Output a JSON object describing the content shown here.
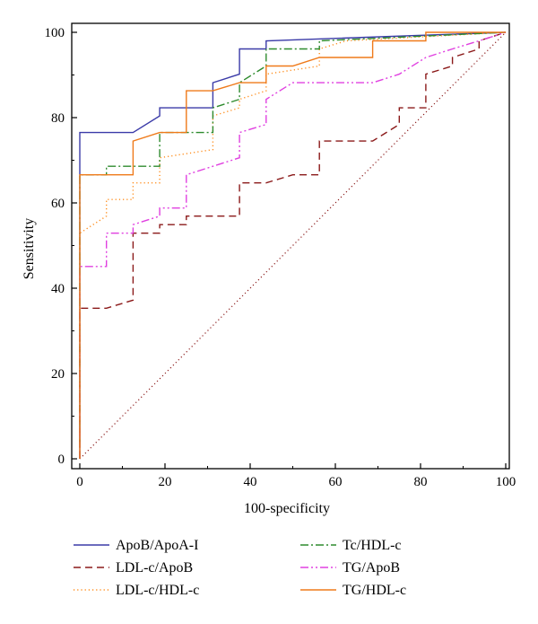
{
  "chart_data": {
    "type": "line",
    "title": "",
    "xlabel": "100-specificity",
    "ylabel": "Sensitivity",
    "xlim": [
      0,
      100
    ],
    "ylim": [
      0,
      100
    ],
    "xticks": [
      "0",
      "20",
      "40",
      "60",
      "80",
      "100"
    ],
    "yticks": [
      "0",
      "20",
      "40",
      "60",
      "80",
      "100"
    ],
    "grid": false,
    "legend_position": "bottom",
    "reference_line": {
      "x": [
        0,
        100
      ],
      "y": [
        0,
        100
      ],
      "color": "#8b1a1a",
      "style": "dotted"
    },
    "series": [
      {
        "name": "ApoB/ApoA-I",
        "color": "#3b3ba8",
        "style": "solid",
        "x": [
          0,
          0,
          12.5,
          18.75,
          18.75,
          25,
          31.25,
          31.25,
          37.5,
          37.5,
          43.75,
          43.75,
          100
        ],
        "y": [
          0,
          76.5,
          76.5,
          80.4,
          82.3,
          82.3,
          82.3,
          88.2,
          90.2,
          96.1,
          96.1,
          98,
          100
        ]
      },
      {
        "name": "LDL-c/ApoB",
        "color": "#8b1a1a",
        "style": "dashed",
        "x": [
          0,
          0,
          6.25,
          12.5,
          12.5,
          18.75,
          18.75,
          25,
          25,
          37.5,
          37.5,
          43.75,
          50,
          50,
          56.25,
          56.25,
          68.75,
          75,
          75,
          81.25,
          81.25,
          87.5,
          87.5,
          93.75,
          93.75,
          100
        ],
        "y": [
          0,
          35.3,
          35.3,
          37.2,
          52.9,
          52.9,
          54.9,
          54.9,
          56.9,
          56.9,
          64.7,
          64.7,
          66.6,
          66.6,
          66.6,
          74.5,
          74.5,
          78.4,
          82.3,
          82.3,
          90.2,
          92.1,
          94.1,
          96.1,
          98,
          100
        ]
      },
      {
        "name": "LDL-c/HDL-c",
        "color": "#ff8c1a",
        "style": "dotted",
        "x": [
          0,
          0,
          6.25,
          6.25,
          12.5,
          12.5,
          18.75,
          18.75,
          31.25,
          31.25,
          37.5,
          37.5,
          43.75,
          43.75,
          56.25,
          56.25,
          62.5,
          100
        ],
        "y": [
          0,
          52.9,
          56.9,
          60.8,
          60.8,
          64.7,
          64.7,
          70.6,
          72.5,
          80.4,
          82.3,
          84.3,
          86.3,
          90.2,
          92.1,
          96.1,
          98,
          100
        ]
      },
      {
        "name": "Tc/HDL-c",
        "color": "#2e8b2e",
        "style": "dashdot",
        "x": [
          0,
          0,
          6.25,
          6.25,
          18.75,
          18.75,
          31.25,
          31.25,
          37.5,
          37.5,
          43.75,
          43.75,
          56.25,
          56.25,
          100
        ],
        "y": [
          0,
          66.6,
          66.6,
          68.6,
          68.6,
          76.5,
          76.5,
          82.3,
          84.3,
          88.2,
          92.1,
          96.1,
          96.1,
          98,
          100
        ]
      },
      {
        "name": "TG/ApoB",
        "color": "#e040e0",
        "style": "dashdotdot",
        "x": [
          0,
          0,
          6.25,
          6.25,
          12.5,
          12.5,
          18.75,
          18.75,
          25,
          25,
          37.5,
          37.5,
          43.75,
          43.75,
          50,
          68.75,
          68.75,
          75,
          75,
          81.25,
          81.25,
          87.5,
          93.75,
          100
        ],
        "y": [
          0,
          45.1,
          45.1,
          52.9,
          52.9,
          54.9,
          56.9,
          58.8,
          58.8,
          66.6,
          70.6,
          76.5,
          78.4,
          84.3,
          88.2,
          88.2,
          88.2,
          90.2,
          90.2,
          94.1,
          94.1,
          96.1,
          98,
          100
        ]
      },
      {
        "name": "TG/HDL-c",
        "color": "#ef7a1a",
        "style": "solid",
        "x": [
          0,
          0,
          12.5,
          12.5,
          18.75,
          25,
          25,
          31.25,
          31.25,
          37.5,
          43.75,
          43.75,
          50,
          56.25,
          56.25,
          68.75,
          68.75,
          81.25,
          81.25,
          100
        ],
        "y": [
          0,
          66.6,
          66.6,
          74.5,
          76.5,
          76.5,
          86.3,
          86.3,
          86.3,
          88.2,
          88.2,
          92.1,
          92.1,
          94.1,
          94.1,
          94.1,
          98,
          98,
          100,
          100
        ]
      }
    ]
  }
}
